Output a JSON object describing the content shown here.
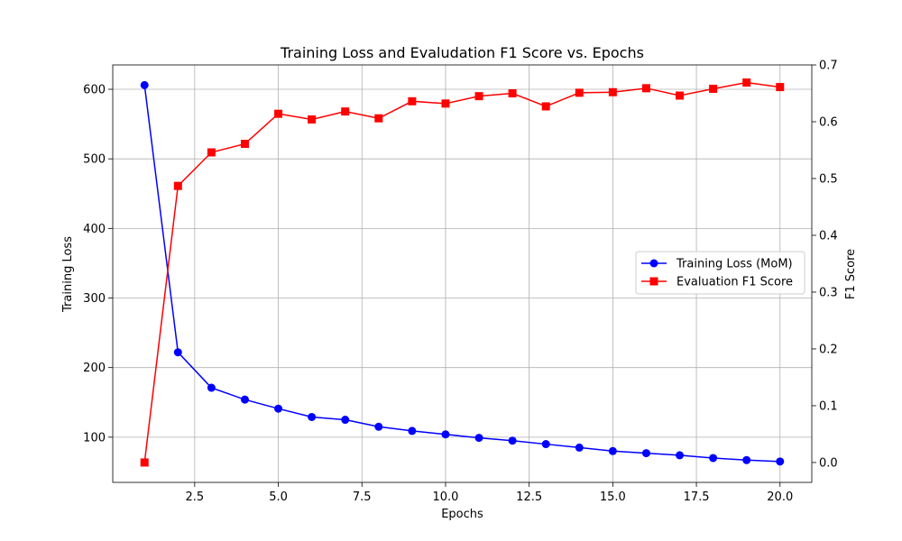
{
  "chart_data": {
    "type": "line",
    "title": "Training Loss and Evaludation F1 Score vs. Epochs",
    "xlabel": "Epochs",
    "ylabel_left": "Training Loss",
    "ylabel_right": "F1 Score",
    "x": [
      1,
      2,
      3,
      4,
      5,
      6,
      7,
      8,
      9,
      10,
      11,
      12,
      13,
      14,
      15,
      16,
      17,
      18,
      19,
      20
    ],
    "xlim": [
      0.05,
      20.95
    ],
    "ylim_left": [
      35,
      635
    ],
    "ylim_right": [
      -0.035,
      0.7
    ],
    "xticks": [
      2.5,
      5.0,
      7.5,
      10.0,
      12.5,
      15.0,
      17.5,
      20.0
    ],
    "xtick_labels": [
      "2.5",
      "5.0",
      "7.5",
      "10.0",
      "12.5",
      "15.0",
      "17.5",
      "20.0"
    ],
    "yticks_left": [
      100,
      200,
      300,
      400,
      500,
      600
    ],
    "ytick_labels_left": [
      "100",
      "200",
      "300",
      "400",
      "500",
      "600"
    ],
    "yticks_right": [
      0.0,
      0.1,
      0.2,
      0.3,
      0.4,
      0.5,
      0.6,
      0.7
    ],
    "ytick_labels_right": [
      "0.0",
      "0.1",
      "0.2",
      "0.3",
      "0.4",
      "0.5",
      "0.6",
      "0.7"
    ],
    "grid": true,
    "legend_position": "center-right",
    "series": [
      {
        "name": "Training Loss (MoM)",
        "axis": "left",
        "color": "#0000ff",
        "marker": "circle",
        "values": [
          606,
          222,
          171,
          154,
          141,
          129,
          125,
          115,
          109,
          104,
          99,
          95,
          90,
          85,
          80,
          77,
          74,
          70,
          67,
          65
        ]
      },
      {
        "name": "Evaluation F1 Score",
        "axis": "right",
        "color": "#ff0000",
        "marker": "square",
        "values": [
          0.0,
          0.487,
          0.546,
          0.561,
          0.614,
          0.604,
          0.618,
          0.606,
          0.636,
          0.632,
          0.645,
          0.65,
          0.627,
          0.651,
          0.652,
          0.659,
          0.646,
          0.658,
          0.669,
          0.661
        ]
      }
    ]
  }
}
